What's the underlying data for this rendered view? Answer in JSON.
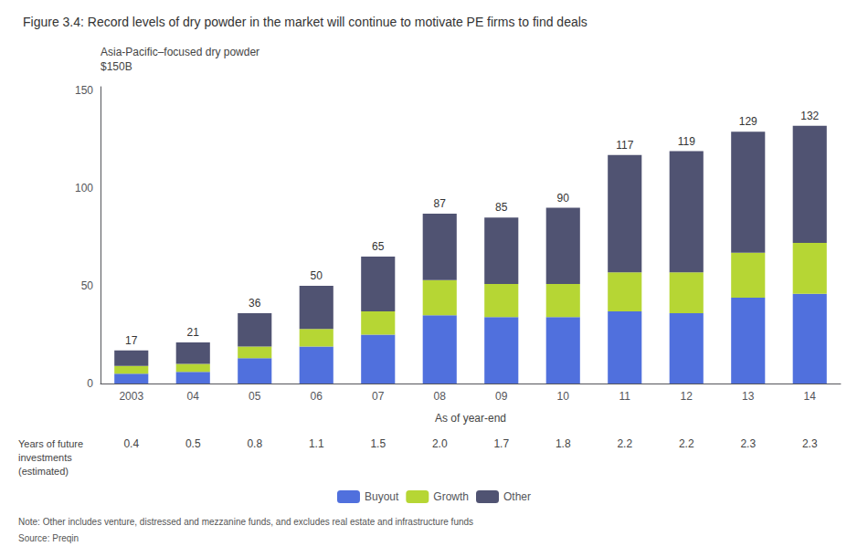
{
  "chart_data": {
    "type": "bar",
    "title": "Figure 3.4: Record levels of dry powder in the market will continue to motivate PE firms to find deals",
    "ylabel": "Asia-Pacific–focused dry powder\n$150B",
    "xlabel": "As of year-end",
    "categories": [
      "2003",
      "04",
      "05",
      "06",
      "07",
      "08",
      "09",
      "10",
      "11",
      "12",
      "13",
      "14"
    ],
    "series": [
      {
        "name": "Buyout",
        "values": [
          5,
          6,
          13,
          19,
          25,
          35,
          34,
          34,
          37,
          36,
          44,
          46
        ]
      },
      {
        "name": "Growth",
        "values": [
          4,
          4,
          6,
          9,
          12,
          18,
          17,
          17,
          20,
          21,
          23,
          26
        ]
      },
      {
        "name": "Other",
        "values": [
          8,
          11,
          17,
          22,
          28,
          34,
          34,
          39,
          60,
          62,
          62,
          60
        ]
      }
    ],
    "totals": [
      17,
      21,
      36,
      50,
      65,
      87,
      85,
      90,
      117,
      119,
      129,
      132
    ],
    "years_of_future": {
      "label": "Years of future\ninvestments\n(estimated)",
      "values": [
        0.4,
        0.5,
        0.8,
        1.1,
        1.5,
        2.0,
        1.7,
        1.8,
        2.2,
        2.2,
        2.3,
        2.3
      ],
      "value_labels": [
        "0.4",
        "0.5",
        "0.8",
        "1.1",
        "1.5",
        "2.0",
        "1.7",
        "1.8",
        "2.2",
        "2.2",
        "2.3",
        "2.3"
      ]
    },
    "ylim": [
      0,
      152
    ],
    "yticks": [
      0,
      50,
      100
    ],
    "stacked": true,
    "grid": false,
    "legend": "bottom",
    "note": "Note: Other includes venture, distressed and mezzanine funds, and excludes real estate and infrastructure funds",
    "source": "Source: Preqin"
  }
}
